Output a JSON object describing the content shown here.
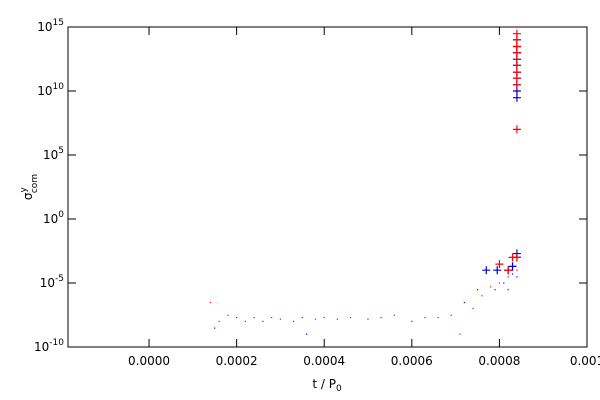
{
  "chart_data": {
    "type": "scatter",
    "xlabel": "t / P",
    "xlabel_sub": "0",
    "ylabel": "σ",
    "ylabel_sup": "y",
    "ylabel_sub": "com",
    "log_y": true,
    "xlim": [
      -0.000185,
      0.001
    ],
    "xticks": [
      {
        "value": 0,
        "label": "0.0000"
      },
      {
        "value": 0.0002,
        "label": "0.0002"
      },
      {
        "value": 0.0004,
        "label": "0.0004"
      },
      {
        "value": 0.0006,
        "label": "0.0006"
      },
      {
        "value": 0.0008,
        "label": "0.0008"
      },
      {
        "value": 0.001,
        "label": "0.001"
      }
    ],
    "ylim": [
      1e-10,
      1000000000000000.0
    ],
    "yticks": [
      {
        "value": 1e-10,
        "label": "10",
        "exponent": "-10"
      },
      {
        "value": 1e-05,
        "label": "10",
        "exponent": "-5"
      },
      {
        "value": 1,
        "label": "10",
        "exponent": "0"
      },
      {
        "value": 100000,
        "label": "10",
        "exponent": "5"
      },
      {
        "value": 10000000000,
        "label": "10",
        "exponent": "10"
      },
      {
        "value": 1000000000000000.0,
        "label": "10",
        "exponent": "15"
      }
    ],
    "series": [
      {
        "color": "#ff0000",
        "marker": "dot",
        "x": [
          0.00014,
          0.00016,
          0.00018,
          0.0002,
          0.00022,
          0.00024,
          0.00026,
          0.00028,
          0.0003,
          0.00033,
          0.00035,
          0.00038,
          0.0004,
          0.00043,
          0.00046,
          0.0005,
          0.00053,
          0.00056,
          0.0006,
          0.00063,
          0.00066,
          0.00069,
          0.00071,
          0.00074,
          0.00076,
          0.00078,
          0.0008,
          0.00082,
          0.00083,
          0.00084
        ],
        "values": [
          3e-07,
          1e-08,
          3e-08,
          2e-08,
          1e-08,
          2e-08,
          1e-08,
          2e-08,
          1.5e-08,
          1e-08,
          2e-08,
          1.5e-08,
          2e-08,
          1.5e-08,
          2e-08,
          1.5e-08,
          2e-08,
          3e-08,
          1e-08,
          2e-08,
          2e-08,
          3e-08,
          1e-09,
          1e-07,
          1e-06,
          5e-06,
          1e-05,
          3e-05,
          0.0001,
          0.0001
        ]
      },
      {
        "color": "#0000ff",
        "marker": "dot",
        "x": [
          0.00015,
          0.00036,
          0.00072,
          0.00075,
          0.00079,
          0.00081,
          0.00082,
          0.00083,
          0.00084
        ],
        "values": [
          3e-09,
          1e-09,
          3e-07,
          3e-06,
          3e-06,
          1e-05,
          3e-06,
          5e-05,
          3e-05
        ]
      },
      {
        "color": "#0000cc",
        "marker": "plus",
        "x": [
          0.00077,
          0.000795,
          0.00082,
          0.00083,
          0.00084,
          0.00084,
          0.00084,
          0.00084,
          0.00084,
          0.00084,
          0.00084,
          0.00084,
          0.00084,
          0.00084,
          0.00084,
          0.00084
        ],
        "values": [
          0.0001,
          0.0001,
          0.0001,
          0.0002,
          0.002,
          0.001,
          3000000000,
          10000000000,
          30000000000,
          100000000000,
          300000000000,
          1000000000000,
          3000000000000,
          10000000000000,
          30000000000000,
          100000000000000
        ]
      },
      {
        "color": "#ff0000",
        "marker": "plus",
        "x": [
          0.0008,
          0.00082,
          0.00083,
          0.00084,
          0.00084,
          0.00084,
          0.00084,
          0.00084,
          0.00084,
          0.00084,
          0.00084,
          0.00084,
          0.00084,
          0.00084
        ],
        "values": [
          0.0003,
          0.0001,
          0.001,
          0.001,
          10000000,
          30000000000,
          100000000000,
          300000000000,
          1000000000000,
          3000000000000,
          10000000000000,
          30000000000000,
          100000000000000,
          300000000000000
        ]
      }
    ]
  }
}
